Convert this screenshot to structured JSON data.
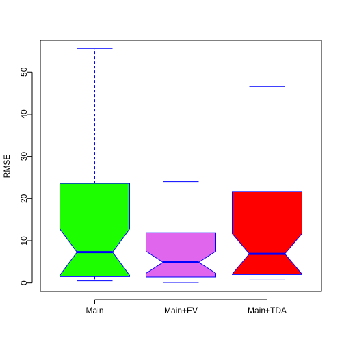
{
  "chart_data": {
    "type": "boxplot",
    "title": "",
    "xlabel": "",
    "ylabel": "RMSE",
    "ylim": [
      -2,
      57.5
    ],
    "y_ticks": [
      0,
      10,
      20,
      30,
      40,
      50
    ],
    "grid": false,
    "notched": true,
    "categories": [
      "Main",
      "Main+EV",
      "Main+TDA"
    ],
    "boxes": [
      {
        "name": "Main",
        "whisker_low": 0.5,
        "q1": 1.5,
        "median": 7.3,
        "q3": 23.6,
        "whisker_high": 55.6,
        "notch_low": 1.8,
        "notch_high": 12.8,
        "fill": "#1dff00"
      },
      {
        "name": "Main+EV",
        "whisker_low": 0.1,
        "q1": 1.4,
        "median": 4.9,
        "q3": 11.9,
        "whisker_high": 24.0,
        "notch_low": 2.3,
        "notch_high": 7.5,
        "fill": "#e066ee"
      },
      {
        "name": "Main+TDA",
        "whisker_low": 0.7,
        "q1": 2.0,
        "median": 6.9,
        "q3": 21.7,
        "whisker_high": 46.6,
        "notch_low": 2.1,
        "notch_high": 11.7,
        "fill": "#ff0000"
      }
    ],
    "colors": {
      "border": "#0000ff",
      "median": "#0000ff",
      "whisker": "#0000ff",
      "axis": "#000000"
    }
  }
}
